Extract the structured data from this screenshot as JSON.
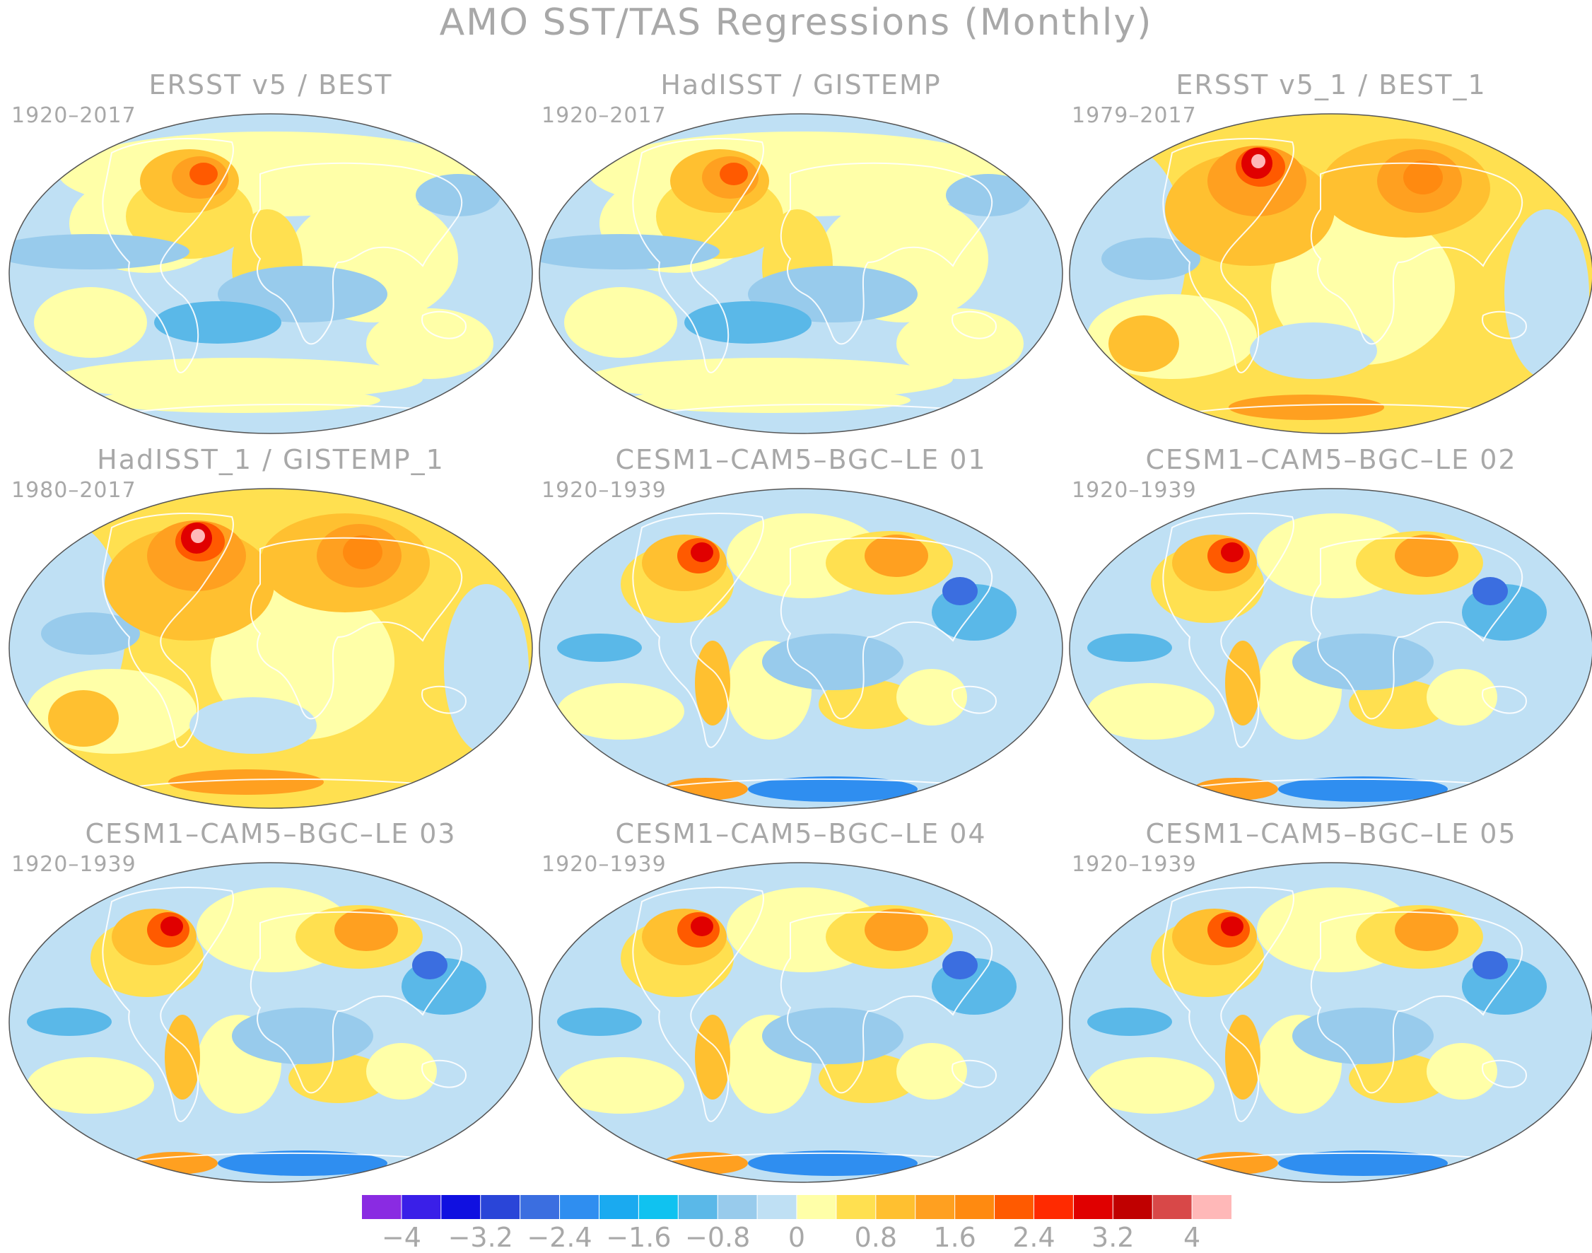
{
  "figure": {
    "title": "AMO SST/TAS Regressions (Monthly)"
  },
  "panels": [
    {
      "title": "ERSST v5 / BEST",
      "years": "1920–2017",
      "pattern": "obs_long"
    },
    {
      "title": "HadISST / GISTEMP",
      "years": "1920–2017",
      "pattern": "obs_long"
    },
    {
      "title": "ERSST v5_1 / BEST_1",
      "years": "1979–2017",
      "pattern": "obs_recent"
    },
    {
      "title": "HadISST_1 / GISTEMP_1",
      "years": "1980–2017",
      "pattern": "obs_recent"
    },
    {
      "title": "CESM1–CAM5–BGC–LE 01",
      "years": "1920–1939",
      "pattern": "model"
    },
    {
      "title": "CESM1–CAM5–BGC–LE 02",
      "years": "1920–1939",
      "pattern": "model"
    },
    {
      "title": "CESM1–CAM5–BGC–LE 03",
      "years": "1920–1939",
      "pattern": "model"
    },
    {
      "title": "CESM1–CAM5–BGC–LE 04",
      "years": "1920–1939",
      "pattern": "model"
    },
    {
      "title": "CESM1–CAM5–BGC–LE 05",
      "years": "1920–1939",
      "pattern": "model"
    }
  ],
  "colorbar": {
    "colors": [
      "#8a2be2",
      "#3a1fe8",
      "#1010e0",
      "#2a45d8",
      "#3b6ee0",
      "#2f8ef0",
      "#1aaaf0",
      "#10c2f0",
      "#5ab8e8",
      "#98cbec",
      "#bfe0f4",
      "#ffffa8",
      "#ffe050",
      "#ffc030",
      "#ffa020",
      "#ff8a10",
      "#ff5a00",
      "#ff2a00",
      "#e00000",
      "#c00000",
      "#d84848",
      "#ffb8b8"
    ],
    "labels": [
      "−4",
      "−3.2",
      "−2.4",
      "−1.6",
      "−0.8",
      "0",
      "0.8",
      "1.6",
      "2.4",
      "3.2",
      "4"
    ]
  }
}
